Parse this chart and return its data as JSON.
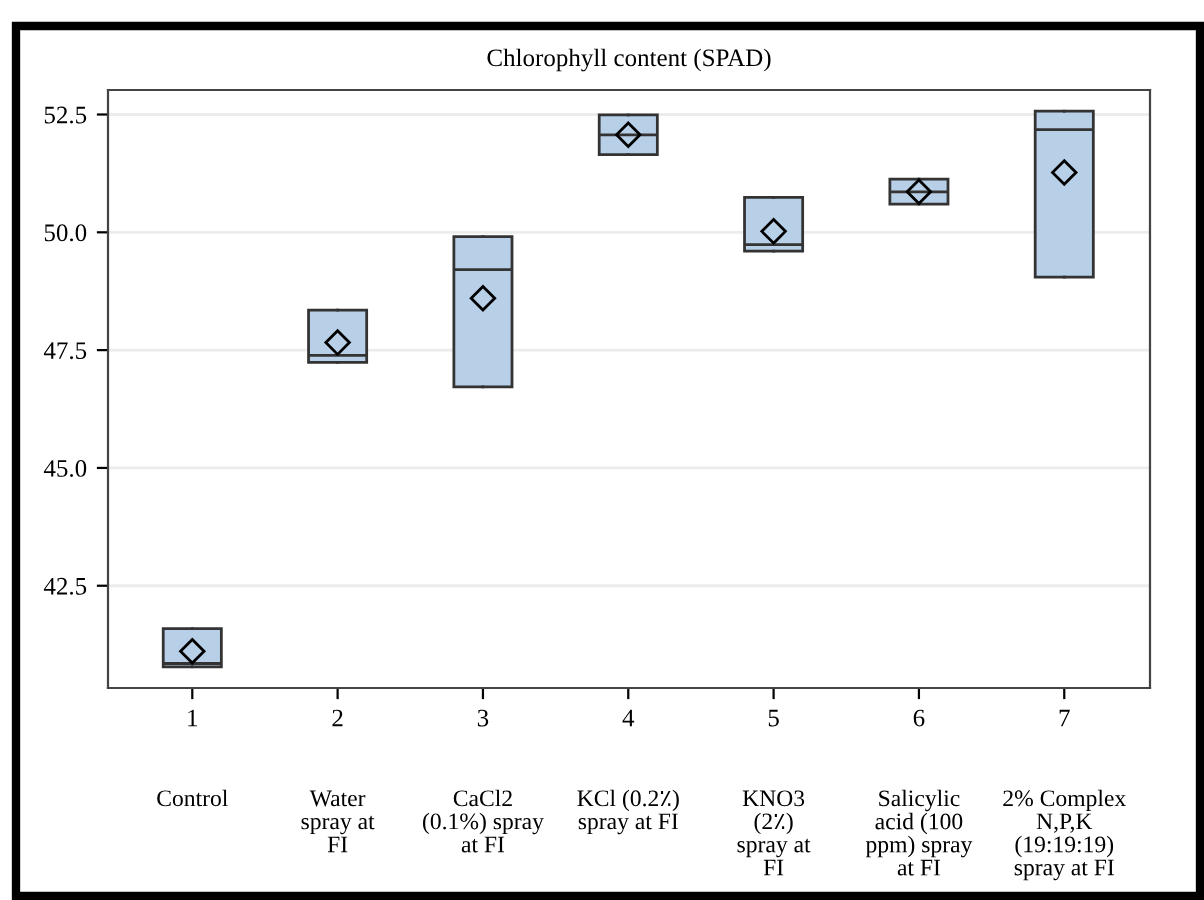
{
  "chart_data": {
    "type": "box",
    "title": "Chlorophyll content (SPAD)",
    "categories": [
      "1",
      "2",
      "3",
      "4",
      "5",
      "6",
      "7"
    ],
    "boxes": [
      {
        "low": 40.78,
        "q1": 40.78,
        "median": 40.85,
        "q3": 41.59,
        "high": 41.59,
        "mean": 41.11
      },
      {
        "low": 47.24,
        "q1": 47.24,
        "median": 47.39,
        "q3": 48.35,
        "high": 48.35,
        "mean": 47.66
      },
      {
        "low": 46.72,
        "q1": 46.72,
        "median": 49.21,
        "q3": 49.91,
        "high": 49.91,
        "mean": 48.6
      },
      {
        "low": 51.65,
        "q1": 51.65,
        "median": 52.07,
        "q3": 52.49,
        "high": 52.49,
        "mean": 52.07
      },
      {
        "low": 49.6,
        "q1": 49.6,
        "median": 49.74,
        "q3": 50.74,
        "high": 50.74,
        "mean": 50.02
      },
      {
        "low": 50.6,
        "q1": 50.6,
        "median": 50.86,
        "q3": 51.13,
        "high": 51.13,
        "mean": 50.86
      },
      {
        "low": 49.05,
        "q1": 49.05,
        "median": 52.18,
        "q3": 52.57,
        "high": 52.57,
        "mean": 51.27
      }
    ],
    "color": "#b8cfe8",
    "ylim": [
      40.33,
      53.02
    ],
    "yticks": [
      {
        "value": 42.5,
        "label": "42.5"
      },
      {
        "value": 45,
        "label": "45.0"
      },
      {
        "value": 47.5,
        "label": "47.5"
      },
      {
        "value": 50,
        "label": "50.0"
      },
      {
        "value": 52.5,
        "label": "52.5"
      }
    ],
    "grid": "y",
    "marker": "diamond",
    "annotations": [
      "Control",
      "Water\nspray at\nFI",
      "CaCl2\n(0.1%) spray\nat FI",
      "KCl (0.2٪)\nspray at FI",
      "KNO3\n(2٪)\nspray at\nFI",
      "Salicylic\nacid (100\nppm) spray\nat FI",
      "2% Complex\nN,P,K\n(19:19:19)\nspray at FI"
    ]
  }
}
